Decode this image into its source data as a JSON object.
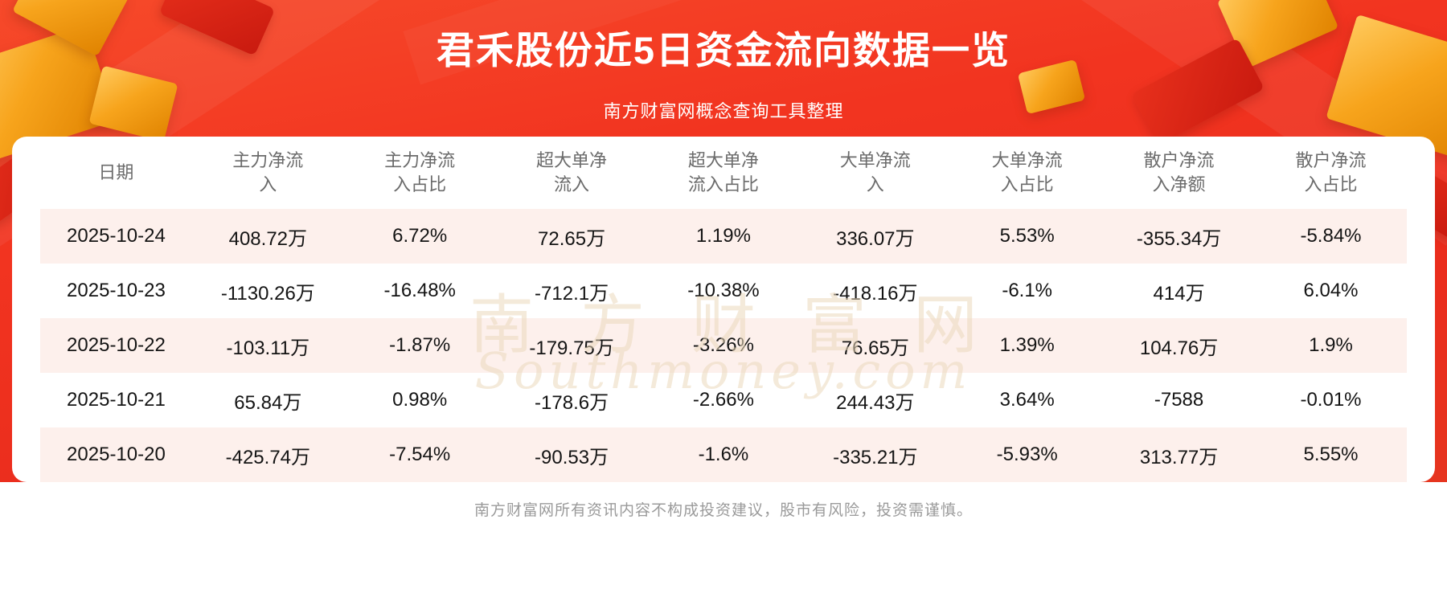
{
  "chart_data": {
    "type": "table",
    "title": "君禾股份近5日资金流向数据一览",
    "subtitle": "南方财富网概念查询工具整理",
    "columns": [
      "日期",
      "主力净流入",
      "主力净流入占比",
      "超大单净流入",
      "超大单净流入占比",
      "大单净流入",
      "大单净流入占比",
      "散户净流入净额",
      "散户净流入占比"
    ],
    "rows": [
      [
        "2025-10-24",
        "408.72万",
        "6.72%",
        "72.65万",
        "1.19%",
        "336.07万",
        "5.53%",
        "-355.34万",
        "-5.84%"
      ],
      [
        "2025-10-23",
        "-1130.26万",
        "-16.48%",
        "-712.1万",
        "-10.38%",
        "-418.16万",
        "-6.1%",
        "414万",
        "6.04%"
      ],
      [
        "2025-10-22",
        "-103.11万",
        "-1.87%",
        "-179.75万",
        "-3.26%",
        "76.65万",
        "1.39%",
        "104.76万",
        "1.9%"
      ],
      [
        "2025-10-21",
        "65.84万",
        "0.98%",
        "-178.6万",
        "-2.66%",
        "244.43万",
        "3.64%",
        "-7588",
        "-0.01%"
      ],
      [
        "2025-10-20",
        "-425.74万",
        "-7.54%",
        "-90.53万",
        "-1.6%",
        "-335.21万",
        "-5.93%",
        "313.77万",
        "5.55%"
      ]
    ],
    "layout_hints": {
      "row_alternating_colors": [
        "#fdf0ec",
        "#ffffff"
      ],
      "banner_color": "#f23420",
      "accent_gold": "#f7a41c"
    }
  },
  "watermark": {
    "cn": "南方财富网",
    "en": "Southmoney.com"
  },
  "footer": {
    "disclaimer": "南方财富网所有资讯内容不构成投资建议，股市有风险，投资需谨慎。"
  }
}
